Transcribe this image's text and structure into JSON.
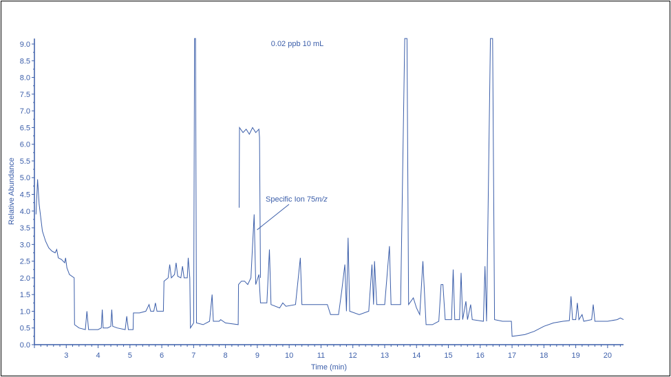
{
  "chart_data": {
    "type": "line",
    "title": "0.02 ppb 10 mL",
    "xlabel": "Time (min)",
    "ylabel": "Relative Abundance",
    "xlim": [
      2.0,
      20.5
    ],
    "ylim": [
      0.0,
      9.0
    ],
    "x_ticks": [
      3,
      4,
      5,
      6,
      7,
      8,
      9,
      10,
      11,
      12,
      13,
      14,
      15,
      16,
      17,
      18,
      19,
      20
    ],
    "y_ticks": [
      0.0,
      0.5,
      1.0,
      1.5,
      2.0,
      2.5,
      3.0,
      3.5,
      4.0,
      4.5,
      5.0,
      5.5,
      6.0,
      6.5,
      7.0,
      7.5,
      8.0,
      8.5,
      9.0
    ],
    "y_tick_labels": [
      "0.0",
      "0.5",
      "1.0",
      "1.5",
      "2.0",
      "2.5",
      "3.0",
      "3.5",
      "4.0",
      "4.5",
      "5.0",
      "5.5",
      "6.0",
      "6.5",
      "7.0",
      "7.5",
      "8.0",
      "8.5",
      "9.0"
    ],
    "grid": false,
    "color": "#3a5da9",
    "annotation": {
      "text": "Specific Ion 75",
      "text_italic": "m/z",
      "x": 8.95,
      "y": 3.5
    },
    "series": [
      {
        "points": [
          [
            2.05,
            3.9
          ],
          [
            2.1,
            4.95
          ],
          [
            2.15,
            4.2
          ],
          [
            2.25,
            3.4
          ],
          [
            2.35,
            3.1
          ],
          [
            2.45,
            2.9
          ],
          [
            2.55,
            2.8
          ],
          [
            2.65,
            2.75
          ],
          [
            2.7,
            2.85
          ],
          [
            2.75,
            2.6
          ],
          [
            2.85,
            2.55
          ],
          [
            2.95,
            2.45
          ],
          [
            2.98,
            2.6
          ],
          [
            3.02,
            2.3
          ],
          [
            3.1,
            2.1
          ],
          [
            3.25,
            2.0
          ],
          [
            3.26,
            0.6
          ],
          [
            3.4,
            0.5
          ],
          [
            3.6,
            0.45
          ],
          [
            3.65,
            1.0
          ],
          [
            3.7,
            0.45
          ],
          [
            4.0,
            0.45
          ],
          [
            4.1,
            0.5
          ],
          [
            4.13,
            1.05
          ],
          [
            4.16,
            0.5
          ],
          [
            4.3,
            0.5
          ],
          [
            4.4,
            0.55
          ],
          [
            4.43,
            1.05
          ],
          [
            4.46,
            0.55
          ],
          [
            4.6,
            0.5
          ],
          [
            4.85,
            0.45
          ],
          [
            4.9,
            0.85
          ],
          [
            4.95,
            0.45
          ],
          [
            5.1,
            0.45
          ],
          [
            5.11,
            0.95
          ],
          [
            5.3,
            0.95
          ],
          [
            5.5,
            1.0
          ],
          [
            5.6,
            1.2
          ],
          [
            5.65,
            1.0
          ],
          [
            5.75,
            1.0
          ],
          [
            5.8,
            1.25
          ],
          [
            5.85,
            1.0
          ],
          [
            6.05,
            1.0
          ],
          [
            6.07,
            1.9
          ],
          [
            6.2,
            2.0
          ],
          [
            6.25,
            2.4
          ],
          [
            6.3,
            2.0
          ],
          [
            6.4,
            2.1
          ],
          [
            6.45,
            2.45
          ],
          [
            6.5,
            2.05
          ],
          [
            6.6,
            2.0
          ],
          [
            6.65,
            2.35
          ],
          [
            6.7,
            2.0
          ],
          [
            6.8,
            2.0
          ],
          [
            6.83,
            2.6
          ],
          [
            6.88,
            2.0
          ],
          [
            6.9,
            0.5
          ],
          [
            7.0,
            0.65
          ],
          [
            7.03,
            9.3
          ],
          [
            7.06,
            9.3
          ],
          [
            7.09,
            0.65
          ],
          [
            7.3,
            0.6
          ],
          [
            7.5,
            0.7
          ],
          [
            7.58,
            1.5
          ],
          [
            7.62,
            0.7
          ],
          [
            7.8,
            0.7
          ],
          [
            7.85,
            0.75
          ],
          [
            8.0,
            0.65
          ],
          [
            8.4,
            0.6
          ],
          [
            8.41,
            1.8
          ],
          [
            8.5,
            1.9
          ],
          [
            8.6,
            1.9
          ],
          [
            8.7,
            1.8
          ],
          [
            8.8,
            2.0
          ],
          [
            8.9,
            3.9
          ],
          [
            8.95,
            1.8
          ],
          [
            9.05,
            2.1
          ],
          [
            9.1,
            1.25
          ],
          [
            9.3,
            1.25
          ],
          [
            9.38,
            2.85
          ],
          [
            9.43,
            1.2
          ],
          [
            9.7,
            1.1
          ],
          [
            9.8,
            1.25
          ],
          [
            9.9,
            1.15
          ],
          [
            10.2,
            1.2
          ],
          [
            10.35,
            2.6
          ],
          [
            10.4,
            1.2
          ],
          [
            11.0,
            1.2
          ],
          [
            11.2,
            1.2
          ],
          [
            11.3,
            0.9
          ],
          [
            11.55,
            0.9
          ],
          [
            11.65,
            1.6
          ],
          [
            11.75,
            2.4
          ],
          [
            11.8,
            1.0
          ],
          [
            11.85,
            3.2
          ],
          [
            11.9,
            1.0
          ],
          [
            12.2,
            0.9
          ],
          [
            12.5,
            1.0
          ],
          [
            12.6,
            2.4
          ],
          [
            12.65,
            1.2
          ],
          [
            12.68,
            2.5
          ],
          [
            12.75,
            1.2
          ],
          [
            13.0,
            1.2
          ],
          [
            13.15,
            2.95
          ],
          [
            13.2,
            1.2
          ],
          [
            13.5,
            1.2
          ],
          [
            13.63,
            9.3
          ],
          [
            13.7,
            9.3
          ],
          [
            13.75,
            1.2
          ],
          [
            13.9,
            1.4
          ],
          [
            14.0,
            1.1
          ],
          [
            14.1,
            0.9
          ],
          [
            14.2,
            2.5
          ],
          [
            14.3,
            0.6
          ],
          [
            14.5,
            0.6
          ],
          [
            14.7,
            0.7
          ],
          [
            14.77,
            1.8
          ],
          [
            14.83,
            1.8
          ],
          [
            14.9,
            0.75
          ],
          [
            15.1,
            0.75
          ],
          [
            15.15,
            2.25
          ],
          [
            15.2,
            0.75
          ],
          [
            15.35,
            0.75
          ],
          [
            15.4,
            2.15
          ],
          [
            15.45,
            0.75
          ],
          [
            15.55,
            1.3
          ],
          [
            15.6,
            0.75
          ],
          [
            15.7,
            1.2
          ],
          [
            15.75,
            0.75
          ],
          [
            16.1,
            0.7
          ],
          [
            16.15,
            2.35
          ],
          [
            16.2,
            0.7
          ],
          [
            16.32,
            9.3
          ],
          [
            16.39,
            9.3
          ],
          [
            16.45,
            0.75
          ],
          [
            16.7,
            0.7
          ],
          [
            16.98,
            0.7
          ],
          [
            17.0,
            0.25
          ],
          [
            17.4,
            0.3
          ],
          [
            17.7,
            0.4
          ],
          [
            18.0,
            0.55
          ],
          [
            18.3,
            0.65
          ],
          [
            18.6,
            0.7
          ],
          [
            18.8,
            0.72
          ],
          [
            18.85,
            1.45
          ],
          [
            18.9,
            0.75
          ],
          [
            19.0,
            0.75
          ],
          [
            19.05,
            1.25
          ],
          [
            19.1,
            0.75
          ],
          [
            19.2,
            0.9
          ],
          [
            19.25,
            0.7
          ],
          [
            19.5,
            0.75
          ],
          [
            19.55,
            1.2
          ],
          [
            19.6,
            0.7
          ],
          [
            20.0,
            0.7
          ],
          [
            20.3,
            0.75
          ],
          [
            20.4,
            0.8
          ],
          [
            20.5,
            0.75
          ]
        ]
      },
      {
        "points": [
          [
            8.43,
            4.1
          ],
          [
            8.44,
            6.5
          ],
          [
            8.55,
            6.35
          ],
          [
            8.65,
            6.45
          ],
          [
            8.75,
            6.3
          ],
          [
            8.85,
            6.5
          ],
          [
            8.95,
            6.35
          ],
          [
            9.05,
            6.45
          ],
          [
            9.07,
            6.2
          ],
          [
            9.1,
            2.0
          ]
        ]
      }
    ]
  }
}
